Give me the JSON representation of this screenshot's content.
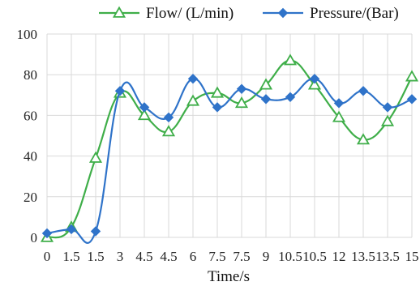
{
  "chart_data": {
    "type": "line",
    "title": "",
    "xlabel": "Time/s",
    "ylabel": "",
    "x": [
      0,
      1.5,
      1.5,
      3,
      4.5,
      4.5,
      6,
      7.5,
      7.5,
      9,
      10.5,
      10.5,
      12,
      13.5,
      13.5,
      15
    ],
    "x_tick_labels": [
      "0",
      "1.5",
      "1.5",
      "3",
      "4.5",
      "4.5",
      "6",
      "7.5",
      "7.5",
      "9",
      "10.5",
      "10.5",
      "12",
      "13.5",
      "13.5",
      "15"
    ],
    "ylim": [
      0,
      100
    ],
    "y_ticks": [
      0,
      20,
      40,
      60,
      80,
      100
    ],
    "grid": {
      "x": true,
      "y": true
    },
    "legend_position": "top",
    "series": [
      {
        "name": "Flow/ (L/min)",
        "color": "#3fae49",
        "marker": "triangle-open",
        "smooth": true,
        "values": [
          0,
          5,
          39,
          71,
          60,
          52,
          67,
          71,
          66,
          75,
          87,
          75,
          59,
          48,
          57,
          79
        ]
      },
      {
        "name": "Pressure/(Bar)",
        "color": "#2f73c9",
        "marker": "diamond-filled",
        "smooth": true,
        "values": [
          2,
          4,
          3,
          72,
          64,
          59,
          78,
          64,
          73,
          68,
          69,
          78,
          66,
          72,
          64,
          68
        ]
      }
    ]
  }
}
